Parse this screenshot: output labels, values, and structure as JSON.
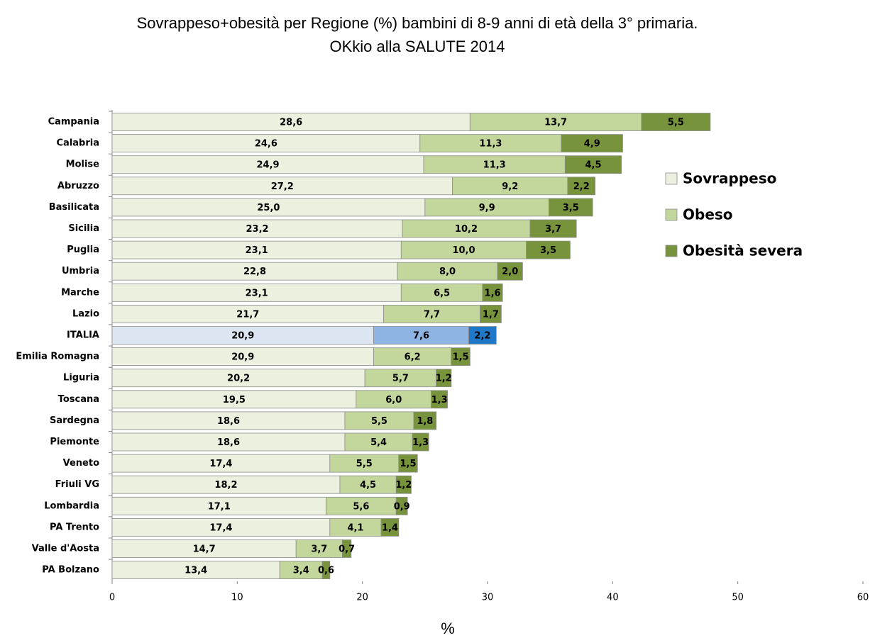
{
  "chart_data": {
    "type": "stacked_barh",
    "title": "Sovrappeso+obesità per Regione (%) bambini di 8-9 anni di età della 3° primaria.",
    "subtitle": "OKkio alla SALUTE 2014",
    "x_label": "%",
    "categories": [
      "Campania",
      "Calabria",
      "Molise",
      "Abruzzo",
      "Basilicata",
      "Sicilia",
      "Puglia",
      "Umbria",
      "Marche",
      "Lazio",
      "ITALIA",
      "Emilia Romagna",
      "Liguria",
      "Toscana",
      "Sardegna",
      "Piemonte",
      "Veneto",
      "Friuli VG",
      "Lombardia",
      "PA Trento",
      "Valle d'Aosta",
      "PA Bolzano"
    ],
    "highlight": "ITALIA",
    "series": [
      {
        "name": "Sovrappeso",
        "color": "#ebf1de",
        "highlight_color": "#dce6f2",
        "values": [
          28.6,
          24.6,
          24.9,
          27.2,
          25.0,
          23.2,
          23.1,
          22.8,
          23.1,
          21.7,
          20.9,
          20.9,
          20.2,
          19.5,
          18.6,
          18.6,
          17.4,
          18.2,
          17.1,
          17.4,
          14.7,
          13.4
        ],
        "value_labels": [
          "28,6",
          "24,6",
          "24,9",
          "27,2",
          "25,0",
          "23,2",
          "23,1",
          "22,8",
          "23,1",
          "21,7",
          "20,9",
          "20,9",
          "20,2",
          "19,5",
          "18,6",
          "18,6",
          "17,4",
          "18,2",
          "17,1",
          "17,4",
          "14,7",
          "13,4"
        ]
      },
      {
        "name": "Obeso",
        "color": "#c3d69b",
        "highlight_color": "#8eb4e3",
        "values": [
          13.7,
          11.3,
          11.3,
          9.2,
          9.9,
          10.2,
          10.0,
          8.0,
          6.5,
          7.7,
          7.6,
          6.2,
          5.7,
          6.0,
          5.5,
          5.4,
          5.5,
          4.5,
          5.6,
          4.1,
          3.7,
          3.4
        ],
        "value_labels": [
          "13,7",
          "11,3",
          "11,3",
          "9,2",
          "9,9",
          "10,2",
          "10,0",
          "8,0",
          "6,5",
          "7,7",
          "7,6",
          "6,2",
          "5,7",
          "6,0",
          "5,5",
          "5,4",
          "5,5",
          "4,5",
          "5,6",
          "4,1",
          "3,7",
          "3,4"
        ]
      },
      {
        "name": "Obesità severa",
        "color": "#77933c",
        "highlight_color": "#1f78c8",
        "values": [
          5.5,
          4.9,
          4.5,
          2.2,
          3.5,
          3.7,
          3.5,
          2.0,
          1.6,
          1.7,
          2.2,
          1.5,
          1.2,
          1.3,
          1.8,
          1.3,
          1.5,
          1.2,
          0.9,
          1.4,
          0.7,
          0.6
        ],
        "value_labels": [
          "5,5",
          "4,9",
          "4,5",
          "2,2",
          "3,5",
          "3,7",
          "3,5",
          "2,0",
          "1,6",
          "1,7",
          "2,2",
          "1,5",
          "1,2",
          "1,3",
          "1,8",
          "1,3",
          "1,5",
          "1,2",
          "0,9",
          "1,4",
          "0,7",
          "0,6"
        ]
      }
    ],
    "xlim": [
      0,
      60
    ],
    "xticks": [
      0,
      10,
      20,
      30,
      40,
      50,
      60
    ],
    "grid": false,
    "legend": "right"
  }
}
